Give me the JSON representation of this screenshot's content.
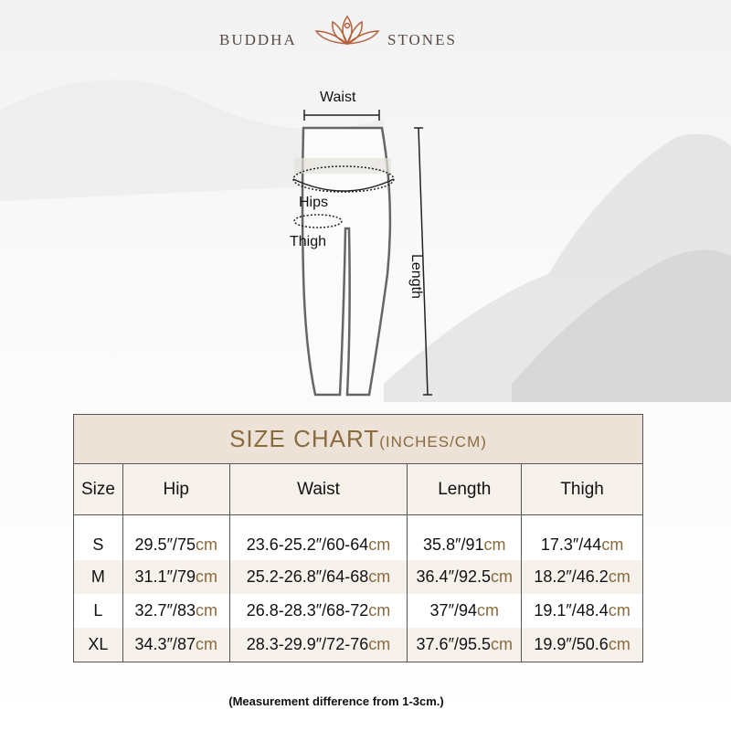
{
  "brand": {
    "left": "BUDDHA",
    "right": "STONES",
    "logo_color": "#b5603c"
  },
  "diagram": {
    "waist": "Waist",
    "hips": "Hips",
    "thigh": "Thigh",
    "length": "Length"
  },
  "chart": {
    "title": "SIZE CHART",
    "title_unit": "(INCHES/CM)",
    "headers": [
      "Size",
      "Hip",
      "Waist",
      "Length",
      "Thigh"
    ],
    "rows": [
      {
        "size": "S",
        "cells": [
          {
            "v": "29.5″/75",
            "u": "cm"
          },
          {
            "v": "23.6-25.2″/60-64",
            "u": "cm"
          },
          {
            "v": "35.8″/91",
            "u": "cm"
          },
          {
            "v": "17.3″/44",
            "u": "cm"
          }
        ]
      },
      {
        "size": "M",
        "cells": [
          {
            "v": "31.1″/79",
            "u": "cm"
          },
          {
            "v": "25.2-26.8″/64-68",
            "u": "cm"
          },
          {
            "v": "36.4″/92.5",
            "u": "cm"
          },
          {
            "v": "18.2″/46.2",
            "u": "cm"
          }
        ]
      },
      {
        "size": "L",
        "cells": [
          {
            "v": "32.7″/83",
            "u": "cm"
          },
          {
            "v": "26.8-28.3″/68-72",
            "u": "cm"
          },
          {
            "v": "37″/94",
            "u": "cm"
          },
          {
            "v": "19.1″/48.4",
            "u": "cm"
          }
        ]
      },
      {
        "size": "XL",
        "cells": [
          {
            "v": "34.3″/87",
            "u": "cm"
          },
          {
            "v": "28.3-29.9″/72-76",
            "u": "cm"
          },
          {
            "v": "37.6″/95.5",
            "u": "cm"
          },
          {
            "v": "19.9″/50.6",
            "u": "cm"
          }
        ]
      }
    ],
    "accent": "#8b6a3e"
  },
  "note": "(Measurement difference from 1-3cm.)"
}
